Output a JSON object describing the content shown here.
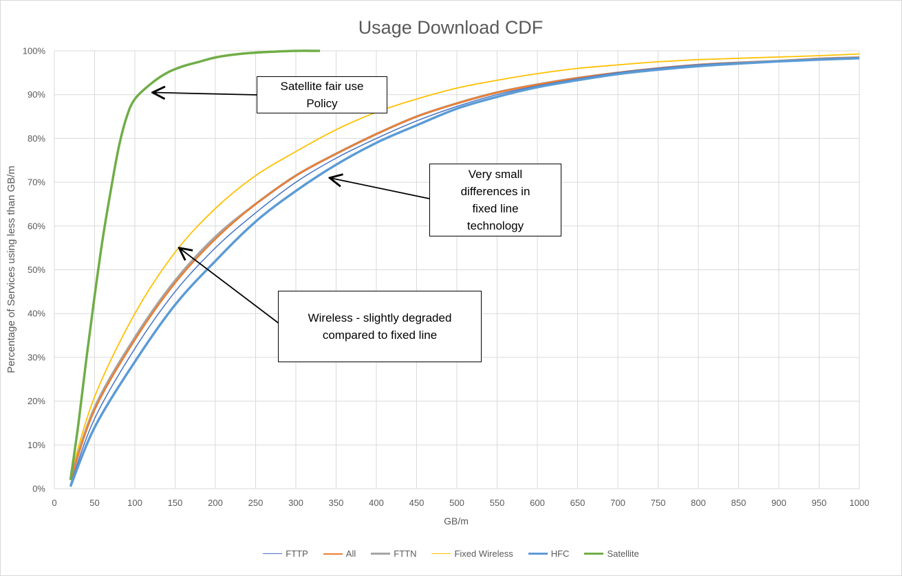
{
  "chart_data": {
    "type": "line",
    "title": "Usage Download CDF",
    "xlabel": "GB/m",
    "ylabel": "Percentage of Services using  less than GB/m",
    "xlim": [
      0,
      1000
    ],
    "ylim": [
      0,
      100
    ],
    "x_ticks": [
      "0",
      "50",
      "100",
      "150",
      "200",
      "250",
      "300",
      "350",
      "400",
      "450",
      "500",
      "550",
      "600",
      "650",
      "700",
      "750",
      "800",
      "850",
      "900",
      "950",
      "1000"
    ],
    "y_ticks": [
      "0%",
      "10%",
      "20%",
      "30%",
      "40%",
      "50%",
      "60%",
      "70%",
      "80%",
      "90%",
      "100%"
    ],
    "grid": true,
    "legend_position": "bottom",
    "series": [
      {
        "name": "FTTP",
        "color": "#4472C4",
        "points": [
          [
            20,
            1
          ],
          [
            50,
            16
          ],
          [
            100,
            32
          ],
          [
            150,
            45
          ],
          [
            200,
            55
          ],
          [
            250,
            63
          ],
          [
            300,
            70
          ],
          [
            350,
            75.5
          ],
          [
            400,
            80
          ],
          [
            450,
            84
          ],
          [
            500,
            87.3
          ],
          [
            550,
            90
          ],
          [
            600,
            92
          ],
          [
            650,
            93.6
          ],
          [
            700,
            95
          ],
          [
            750,
            96
          ],
          [
            800,
            96.8
          ],
          [
            850,
            97.3
          ],
          [
            900,
            97.7
          ],
          [
            950,
            98.2
          ],
          [
            1000,
            98.5
          ]
        ]
      },
      {
        "name": "All",
        "color": "#ED7D31",
        "points": [
          [
            20,
            2
          ],
          [
            50,
            18
          ],
          [
            100,
            34
          ],
          [
            150,
            47
          ],
          [
            200,
            57
          ],
          [
            250,
            65
          ],
          [
            300,
            71.5
          ],
          [
            350,
            76.5
          ],
          [
            400,
            81
          ],
          [
            450,
            85
          ],
          [
            500,
            88
          ],
          [
            550,
            90.5
          ],
          [
            600,
            92.3
          ],
          [
            650,
            93.8
          ],
          [
            700,
            95
          ],
          [
            750,
            96
          ],
          [
            800,
            96.8
          ],
          [
            850,
            97.3
          ],
          [
            900,
            97.7
          ],
          [
            950,
            98.2
          ],
          [
            1000,
            98.5
          ]
        ]
      },
      {
        "name": "FTTN",
        "color": "#A5A5A5",
        "points": [
          [
            20,
            2
          ],
          [
            50,
            18.5
          ],
          [
            100,
            34.5
          ],
          [
            150,
            47.5
          ],
          [
            200,
            57.5
          ],
          [
            250,
            65
          ],
          [
            300,
            71.5
          ],
          [
            350,
            76.5
          ],
          [
            400,
            81
          ],
          [
            450,
            85
          ],
          [
            500,
            88
          ],
          [
            550,
            90.5
          ],
          [
            600,
            92.3
          ],
          [
            650,
            93.8
          ],
          [
            700,
            95
          ],
          [
            750,
            96
          ],
          [
            800,
            96.8
          ],
          [
            850,
            97.3
          ],
          [
            900,
            97.7
          ],
          [
            950,
            98.2
          ],
          [
            1000,
            98.5
          ]
        ]
      },
      {
        "name": "Fixed Wireless",
        "color": "#FFC000",
        "points": [
          [
            20,
            3
          ],
          [
            50,
            21
          ],
          [
            100,
            40
          ],
          [
            150,
            54
          ],
          [
            200,
            64
          ],
          [
            250,
            71.5
          ],
          [
            300,
            77
          ],
          [
            350,
            82
          ],
          [
            400,
            86
          ],
          [
            450,
            89
          ],
          [
            500,
            91.5
          ],
          [
            550,
            93.3
          ],
          [
            600,
            94.8
          ],
          [
            650,
            96
          ],
          [
            700,
            96.8
          ],
          [
            750,
            97.5
          ],
          [
            800,
            98
          ],
          [
            850,
            98.3
          ],
          [
            900,
            98.6
          ],
          [
            950,
            98.9
          ],
          [
            1000,
            99.3
          ]
        ]
      },
      {
        "name": "HFC",
        "color": "#5B9BD5",
        "points": [
          [
            20,
            0.5
          ],
          [
            50,
            14
          ],
          [
            100,
            29
          ],
          [
            150,
            42
          ],
          [
            200,
            52
          ],
          [
            250,
            61
          ],
          [
            300,
            68
          ],
          [
            350,
            74
          ],
          [
            400,
            79
          ],
          [
            450,
            83
          ],
          [
            500,
            86.8
          ],
          [
            550,
            89.5
          ],
          [
            600,
            91.7
          ],
          [
            650,
            93.3
          ],
          [
            700,
            94.7
          ],
          [
            750,
            95.7
          ],
          [
            800,
            96.5
          ],
          [
            850,
            97.1
          ],
          [
            900,
            97.6
          ],
          [
            950,
            98
          ],
          [
            1000,
            98.3
          ]
        ]
      },
      {
        "name": "Satellite",
        "color": "#70AD47",
        "points": [
          [
            20,
            2
          ],
          [
            30,
            15
          ],
          [
            40,
            30
          ],
          [
            50,
            44
          ],
          [
            60,
            57
          ],
          [
            70,
            68
          ],
          [
            80,
            78
          ],
          [
            90,
            85
          ],
          [
            100,
            89
          ],
          [
            120,
            92.5
          ],
          [
            140,
            95
          ],
          [
            160,
            96.5
          ],
          [
            180,
            97.5
          ],
          [
            200,
            98.5
          ],
          [
            230,
            99.3
          ],
          [
            260,
            99.7
          ],
          [
            300,
            100
          ],
          [
            330,
            100
          ]
        ]
      }
    ],
    "annotations": [
      {
        "text": "Satellite fair use\nPolicy",
        "target": [
          122,
          90.5
        ]
      },
      {
        "text": "Very small\ndifferences in\nfixed line\ntechnology",
        "target": [
          342,
          71
        ]
      },
      {
        "text": "Wireless  - slightly degraded\ncompared to fixed line",
        "target": [
          155,
          55
        ]
      }
    ]
  }
}
